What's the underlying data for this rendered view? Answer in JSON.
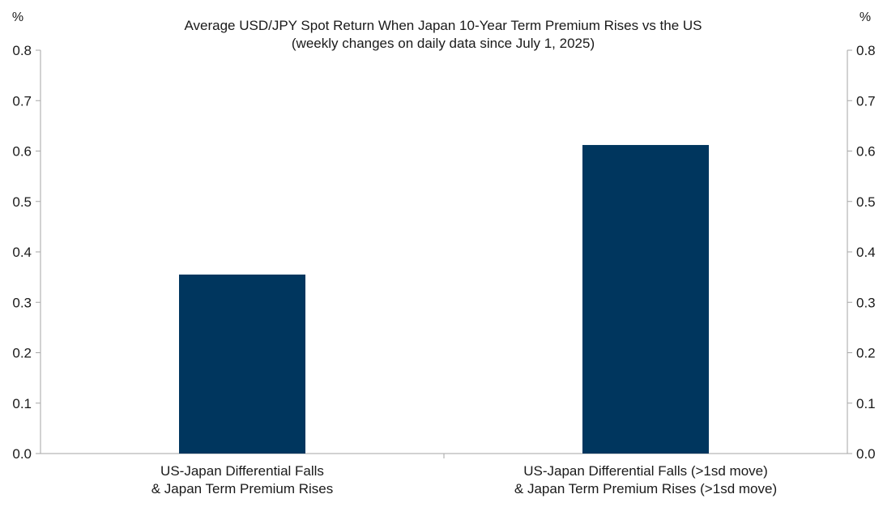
{
  "chart_data": {
    "type": "bar",
    "title": "Average USD/JPY Spot Return When Japan 10-Year Term Premium Rises vs the US",
    "subtitle": "(weekly changes on daily data since July 1, 2025)",
    "ylabel_left": "%",
    "ylabel_right": "%",
    "ylim": [
      0,
      0.8
    ],
    "yticks": [
      "0.0",
      "0.1",
      "0.2",
      "0.3",
      "0.4",
      "0.5",
      "0.6",
      "0.7",
      "0.8"
    ],
    "categories": [
      [
        "US-Japan Differential Falls",
        "&  Japan Term Premium Rises"
      ],
      [
        "US-Japan Differential Falls (>1sd move)",
        "&  Japan Term Premium Rises (>1sd move)"
      ]
    ],
    "values": [
      0.355,
      0.612
    ],
    "bar_color": "#00365e",
    "axis_color": "#a6a6a6",
    "grid": false,
    "legend": "none"
  }
}
